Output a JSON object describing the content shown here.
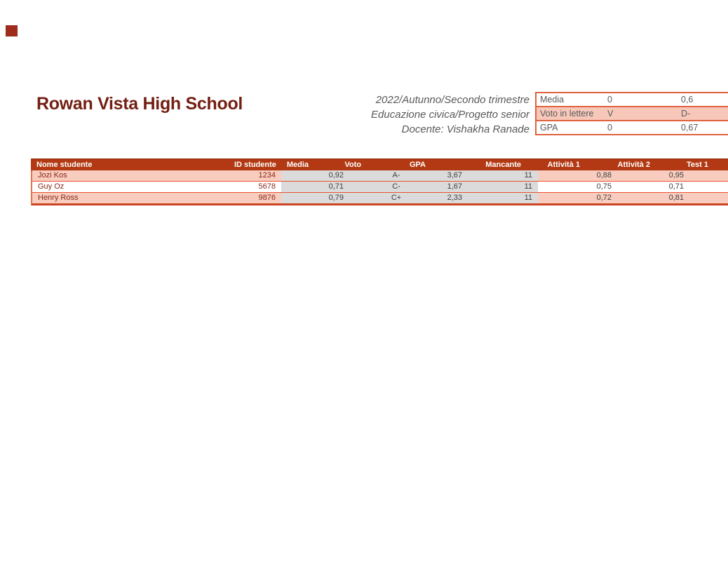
{
  "page": {
    "background": "#ffffff",
    "accent_dark_red": "#B23913",
    "accent_coral": "#E0613D",
    "band_pink": "#F8CCBE",
    "calc_gray": "#DBDBDB"
  },
  "header": {
    "school_name": "Rowan Vista High School",
    "term": "2022/Autunno/Secondo trimestre",
    "course": "Educazione civica/Progetto senior",
    "teacher": "Docente: Vishakha Ranade"
  },
  "summary_table": {
    "rows": [
      {
        "label": "Media",
        "value1": "0",
        "value2": "0,6"
      },
      {
        "label": "Voto in lettere",
        "value1": "V",
        "value2": "D-"
      },
      {
        "label": "GPA",
        "value1": "0",
        "value2": "0,67"
      }
    ]
  },
  "gradebook": {
    "columns": [
      "Nome studente",
      "ID studente",
      "Media",
      "Voto",
      "GPA",
      "Mancante",
      "Attività 1",
      "Attività 2",
      "Test 1"
    ],
    "rows": [
      {
        "name": "Jozi Kos",
        "id": "1234",
        "media": "0,92",
        "voto": "A-",
        "gpa": "3,67",
        "mancante": "11",
        "att1": "0,88",
        "att2": "0,95",
        "test1": ""
      },
      {
        "name": "Guy Oz",
        "id": "5678",
        "media": "0,71",
        "voto": "C-",
        "gpa": "1,67",
        "mancante": "11",
        "att1": "0,75",
        "att2": "0,71",
        "test1": ""
      },
      {
        "name": "Henry Ross",
        "id": "9876",
        "media": "0,79",
        "voto": "C+",
        "gpa": "2,33",
        "mancante": "11",
        "att1": "0,72",
        "att2": "0,81",
        "test1": ""
      }
    ]
  }
}
